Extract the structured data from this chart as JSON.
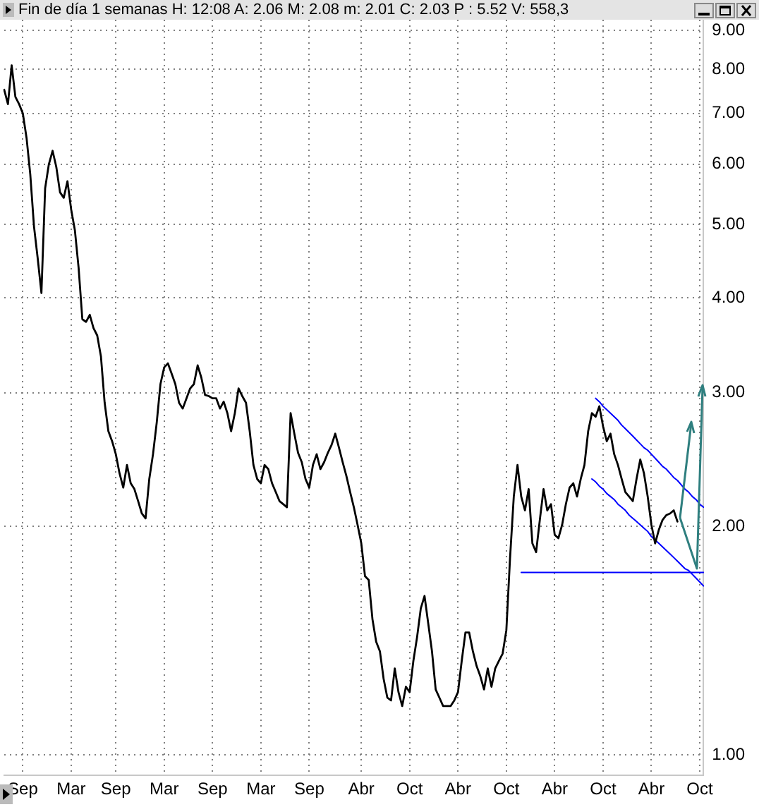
{
  "chart_data": {
    "type": "line",
    "title": "Fin de día 1 semanas  H: 12:08  A: 2.06  M: 2.08  m: 2.01  C: 2.03  P : 5.52  V: 558,3",
    "categories": [
      null,
      null,
      null,
      null,
      null,
      "Sep",
      null,
      null,
      null,
      null,
      null,
      null,
      null,
      null,
      null,
      null,
      null,
      null,
      "Mar",
      null,
      null,
      null,
      null,
      null,
      null,
      null,
      null,
      null,
      null,
      null,
      "Sep",
      null,
      null,
      null,
      null,
      null,
      null,
      null,
      null,
      null,
      null,
      null,
      null,
      "Mar",
      null,
      null,
      null,
      null,
      null,
      null,
      null,
      null,
      null,
      null,
      null,
      null,
      "Sep",
      null,
      null,
      null,
      null,
      null,
      null,
      null,
      null,
      null,
      null,
      null,
      null,
      "Mar",
      null,
      null,
      null,
      null,
      null,
      null,
      null,
      null,
      null,
      null,
      null,
      null,
      "Sep",
      null,
      null,
      null,
      null,
      null,
      null,
      null,
      null,
      null,
      null,
      null,
      null,
      null,
      "Abr",
      null,
      null,
      null,
      null,
      null,
      null,
      null,
      null,
      null,
      null,
      null,
      null,
      "Oct",
      null,
      null,
      null,
      null,
      null,
      null,
      null,
      null,
      null,
      null,
      null,
      null,
      "Abr",
      null,
      null,
      null,
      null,
      null,
      null,
      null,
      null,
      null,
      null,
      null,
      null,
      "Oct",
      null,
      null,
      null,
      null,
      null,
      null,
      null,
      null,
      null,
      null,
      null,
      null,
      "Abr",
      null,
      null,
      null,
      null,
      null,
      null,
      null,
      null,
      null,
      null,
      null,
      null,
      "Oct",
      null,
      null,
      null,
      null,
      null,
      null,
      null,
      null,
      null,
      null,
      null,
      null,
      "Abr",
      null,
      null,
      null,
      null,
      null,
      null,
      null,
      null,
      null,
      null,
      null,
      null,
      "Oct",
      null
    ],
    "ylim": [
      0.94,
      9.3
    ],
    "yticks": [
      {
        "value": 1,
        "label": "1.00"
      },
      {
        "value": 2,
        "label": "2.00"
      },
      {
        "value": 3,
        "label": "3.00"
      },
      {
        "value": 4,
        "label": "4.00"
      },
      {
        "value": 5,
        "label": "5.00"
      },
      {
        "value": 6,
        "label": "6.00"
      },
      {
        "value": 7,
        "label": "7.00"
      },
      {
        "value": 8,
        "label": "8.00"
      },
      {
        "value": 9,
        "label": "9.00"
      }
    ],
    "log": "y",
    "grid": true,
    "legend": false,
    "marker": "none",
    "line_style": "solid",
    "series": [
      {
        "color": "#000000",
        "values": [
          7.52,
          7.2,
          8.1,
          7.36,
          7.2,
          7.0,
          6.5,
          5.82,
          4.97,
          4.51,
          4.06,
          5.58,
          6.0,
          6.25,
          5.95,
          5.51,
          5.42,
          5.7,
          5.23,
          4.91,
          4.38,
          3.75,
          3.72,
          3.8,
          3.65,
          3.57,
          3.35,
          2.91,
          2.67,
          2.59,
          2.49,
          2.35,
          2.25,
          2.41,
          2.28,
          2.24,
          2.16,
          2.08,
          2.05,
          2.31,
          2.49,
          2.74,
          3.08,
          3.24,
          3.28,
          3.18,
          3.08,
          2.91,
          2.86,
          2.95,
          3.04,
          3.08,
          3.26,
          3.14,
          2.98,
          2.97,
          2.95,
          2.95,
          2.86,
          2.92,
          2.82,
          2.67,
          2.82,
          3.04,
          2.97,
          2.91,
          2.67,
          2.41,
          2.31,
          2.28,
          2.41,
          2.38,
          2.28,
          2.22,
          2.16,
          2.14,
          2.12,
          2.82,
          2.65,
          2.5,
          2.43,
          2.31,
          2.25,
          2.41,
          2.49,
          2.38,
          2.43,
          2.5,
          2.56,
          2.65,
          2.54,
          2.43,
          2.33,
          2.22,
          2.12,
          2.01,
          1.9,
          1.72,
          1.7,
          1.51,
          1.41,
          1.37,
          1.26,
          1.19,
          1.18,
          1.3,
          1.21,
          1.16,
          1.23,
          1.21,
          1.33,
          1.43,
          1.56,
          1.62,
          1.49,
          1.37,
          1.22,
          1.19,
          1.16,
          1.16,
          1.16,
          1.18,
          1.21,
          1.33,
          1.45,
          1.45,
          1.37,
          1.31,
          1.27,
          1.22,
          1.3,
          1.23,
          1.3,
          1.33,
          1.36,
          1.46,
          1.82,
          2.19,
          2.41,
          2.19,
          2.1,
          2.24,
          1.9,
          1.85,
          2.04,
          2.24,
          2.1,
          2.14,
          1.95,
          1.93,
          2.01,
          2.14,
          2.25,
          2.28,
          2.19,
          2.31,
          2.41,
          2.67,
          2.82,
          2.79,
          2.88,
          2.71,
          2.59,
          2.65,
          2.49,
          2.41,
          2.31,
          2.22,
          2.19,
          2.16,
          2.31,
          2.45,
          2.35,
          2.19,
          2.01,
          1.9,
          1.98,
          2.04,
          2.07,
          2.08,
          2.1,
          2.03,
          null,
          null,
          null,
          null,
          null,
          null,
          null
        ]
      },
      {
        "color": "#0000ff",
        "values": [
          null,
          null,
          null,
          null,
          null,
          null,
          null,
          null,
          null,
          null,
          null,
          null,
          null,
          null,
          null,
          null,
          null,
          null,
          null,
          null,
          null,
          null,
          null,
          null,
          null,
          null,
          null,
          null,
          null,
          null,
          null,
          null,
          null,
          null,
          null,
          null,
          null,
          null,
          null,
          null,
          null,
          null,
          null,
          null,
          null,
          null,
          null,
          null,
          null,
          null,
          null,
          null,
          null,
          null,
          null,
          null,
          null,
          null,
          null,
          null,
          null,
          null,
          null,
          null,
          null,
          null,
          null,
          null,
          null,
          null,
          null,
          null,
          null,
          null,
          null,
          null,
          null,
          null,
          null,
          null,
          null,
          null,
          null,
          null,
          null,
          null,
          null,
          null,
          null,
          null,
          null,
          null,
          null,
          null,
          null,
          null,
          null,
          null,
          null,
          null,
          null,
          null,
          null,
          null,
          null,
          null,
          null,
          null,
          null,
          null,
          null,
          null,
          null,
          null,
          null,
          null,
          null,
          null,
          null,
          null,
          null,
          null,
          null,
          null,
          null,
          null,
          null,
          null,
          null,
          null,
          null,
          null,
          null,
          null,
          null,
          null,
          null,
          null,
          null,
          null,
          null,
          null,
          null,
          null,
          null,
          null,
          null,
          null,
          null,
          null,
          null,
          null,
          null,
          null,
          null,
          null,
          null,
          null,
          null,
          2.95,
          2.92,
          2.88,
          2.85,
          2.82,
          2.79,
          2.76,
          2.72,
          2.69,
          2.66,
          2.63,
          2.6,
          2.57,
          2.54,
          2.52,
          2.49,
          2.46,
          2.43,
          2.4,
          2.38,
          2.35,
          2.32,
          2.3,
          2.27,
          2.24,
          2.22,
          2.19,
          2.17,
          2.14,
          2.12
        ]
      },
      {
        "color": "#0000ff",
        "values": [
          null,
          null,
          null,
          null,
          null,
          null,
          null,
          null,
          null,
          null,
          null,
          null,
          null,
          null,
          null,
          null,
          null,
          null,
          null,
          null,
          null,
          null,
          null,
          null,
          null,
          null,
          null,
          null,
          null,
          null,
          null,
          null,
          null,
          null,
          null,
          null,
          null,
          null,
          null,
          null,
          null,
          null,
          null,
          null,
          null,
          null,
          null,
          null,
          null,
          null,
          null,
          null,
          null,
          null,
          null,
          null,
          null,
          null,
          null,
          null,
          null,
          null,
          null,
          null,
          null,
          null,
          null,
          null,
          null,
          null,
          null,
          null,
          null,
          null,
          null,
          null,
          null,
          null,
          null,
          null,
          null,
          null,
          null,
          null,
          null,
          null,
          null,
          null,
          null,
          null,
          null,
          null,
          null,
          null,
          null,
          null,
          null,
          null,
          null,
          null,
          null,
          null,
          null,
          null,
          null,
          null,
          null,
          null,
          null,
          null,
          null,
          null,
          null,
          null,
          null,
          null,
          null,
          null,
          null,
          null,
          null,
          null,
          null,
          null,
          null,
          null,
          null,
          null,
          null,
          null,
          null,
          null,
          null,
          null,
          null,
          null,
          null,
          null,
          null,
          null,
          null,
          null,
          null,
          null,
          null,
          null,
          null,
          null,
          null,
          null,
          null,
          null,
          null,
          null,
          null,
          null,
          null,
          null,
          2.31,
          2.29,
          2.26,
          2.24,
          2.21,
          2.19,
          2.17,
          2.14,
          2.12,
          2.1,
          2.07,
          2.05,
          2.03,
          2.01,
          1.99,
          1.97,
          1.94,
          1.92,
          1.9,
          1.88,
          1.86,
          1.84,
          1.82,
          1.8,
          1.78,
          1.76,
          1.75,
          1.73,
          1.71,
          1.69,
          1.67
        ]
      },
      {
        "color": "#0000ff",
        "values": [
          null,
          null,
          null,
          null,
          null,
          null,
          null,
          null,
          null,
          null,
          null,
          null,
          null,
          null,
          null,
          null,
          null,
          null,
          null,
          null,
          null,
          null,
          null,
          null,
          null,
          null,
          null,
          null,
          null,
          null,
          null,
          null,
          null,
          null,
          null,
          null,
          null,
          null,
          null,
          null,
          null,
          null,
          null,
          null,
          null,
          null,
          null,
          null,
          null,
          null,
          null,
          null,
          null,
          null,
          null,
          null,
          null,
          null,
          null,
          null,
          null,
          null,
          null,
          null,
          null,
          null,
          null,
          null,
          null,
          null,
          null,
          null,
          null,
          null,
          null,
          null,
          null,
          null,
          null,
          null,
          null,
          null,
          null,
          null,
          null,
          null,
          null,
          null,
          null,
          null,
          null,
          null,
          null,
          null,
          null,
          null,
          null,
          null,
          null,
          null,
          null,
          null,
          null,
          null,
          null,
          null,
          null,
          null,
          null,
          null,
          null,
          null,
          null,
          null,
          null,
          null,
          null,
          null,
          null,
          null,
          null,
          null,
          null,
          null,
          null,
          null,
          null,
          null,
          null,
          null,
          null,
          null,
          null,
          null,
          null,
          null,
          null,
          null,
          null,
          1.74,
          1.74,
          1.74,
          1.74,
          1.74,
          1.74,
          1.74,
          1.74,
          1.74,
          1.74,
          1.74,
          1.74,
          1.74,
          1.74,
          1.74,
          1.74,
          1.74,
          1.74,
          1.74,
          1.74,
          1.74,
          1.74,
          1.74,
          1.74,
          1.74,
          1.74,
          1.74,
          1.74,
          1.74,
          1.74,
          1.74,
          1.74,
          1.74,
          1.74,
          1.74,
          1.74,
          1.74,
          1.74,
          1.74,
          1.74,
          1.74,
          1.74,
          1.74,
          1.74,
          1.74,
          1.74,
          1.74,
          1.74,
          1.74,
          1.74
        ]
      }
    ]
  }
}
